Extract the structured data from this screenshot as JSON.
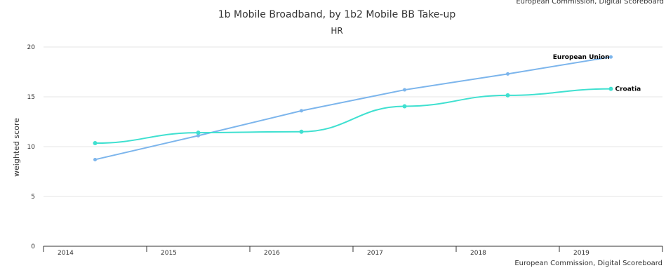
{
  "credit": "European Commission, Digital Scoreboard",
  "chart_data": {
    "type": "line",
    "title": "1b Mobile Broadband, by 1b2 Mobile BB Take-up",
    "subtitle": "HR",
    "xlabel": "",
    "ylabel": "weighted score",
    "categories": [
      "2014",
      "2015",
      "2016",
      "2017",
      "2018",
      "2019"
    ],
    "yticks": [
      0,
      5,
      10,
      15,
      20
    ],
    "ylim": [
      0,
      20
    ],
    "grid": true,
    "legend": "none",
    "series": [
      {
        "name": "European Union",
        "color": "#7cb5ec",
        "values": [
          8.7,
          11.1,
          13.6,
          15.7,
          17.3,
          19.0
        ]
      },
      {
        "name": "Croatia",
        "color": "#3fe0d0",
        "values": [
          10.35,
          11.4,
          11.5,
          14.05,
          15.15,
          15.8
        ]
      }
    ]
  }
}
